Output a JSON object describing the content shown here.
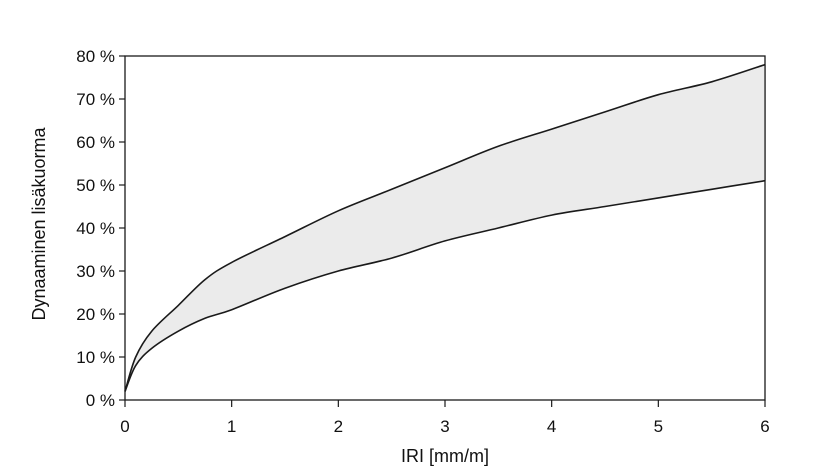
{
  "chart_data": {
    "type": "area",
    "title": "",
    "xlabel": "IRI [mm/m]",
    "ylabel": "Dynaaminen lisäkuorma",
    "xlim": [
      0,
      6
    ],
    "ylim": [
      0,
      80
    ],
    "x_ticks": [
      "0",
      "1",
      "2",
      "3",
      "4",
      "5",
      "6"
    ],
    "y_ticks": [
      "0 %",
      "10 %",
      "20 %",
      "30 %",
      "40 %",
      "50 %",
      "60 %",
      "70 %",
      "80 %"
    ],
    "grid": false,
    "legend": "none",
    "fill_color": "#ebebeb",
    "line_color": "#1a1a1a",
    "series": [
      {
        "role": "upper",
        "x": [
          0,
          0.1,
          0.25,
          0.5,
          0.75,
          1,
          1.5,
          2,
          2.5,
          3,
          3.5,
          4,
          4.5,
          5,
          5.5,
          6
        ],
        "values": [
          2,
          10,
          16,
          22,
          28,
          32,
          38,
          44,
          49,
          54,
          59,
          63,
          67,
          71,
          74,
          78
        ]
      },
      {
        "role": "lower",
        "x": [
          0,
          0.1,
          0.25,
          0.5,
          0.75,
          1,
          1.5,
          2,
          2.5,
          3,
          3.5,
          4,
          4.5,
          5,
          5.5,
          6
        ],
        "values": [
          2,
          8,
          12,
          16,
          19,
          21,
          26,
          30,
          33,
          37,
          40,
          43,
          45,
          47,
          49,
          51
        ]
      }
    ]
  }
}
